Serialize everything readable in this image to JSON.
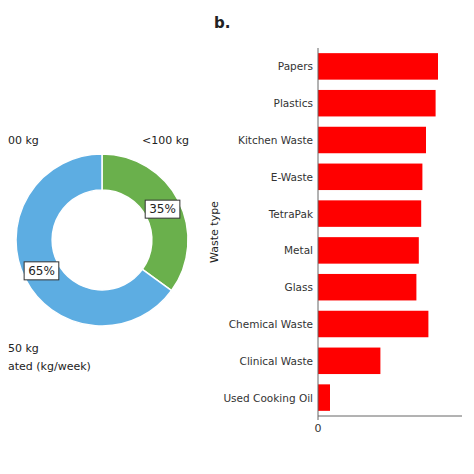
{
  "chart_data": [
    {
      "type": "pie",
      "values": [
        35,
        65
      ],
      "colors": [
        "#6ab04c",
        "#5dade2"
      ],
      "data_labels": true,
      "value_labels": [
        "35%",
        "65%"
      ],
      "annotations": [
        "<100 kg",
        "00 kg",
        "50 kg",
        "ated (kg/week)"
      ]
    },
    {
      "type": "bar",
      "orientation": "horizontal",
      "subtitle": "b.",
      "ylabel": "Waste type",
      "categories": [
        "Papers",
        "Plastics",
        "Kitchen Waste",
        "E-Waste",
        "TetraPak",
        "Metal",
        "Glass",
        "Chemical Waste",
        "Clinical Waste",
        "Used Cooking Oil"
      ],
      "values": [
        100,
        98,
        90,
        87,
        86,
        84,
        82,
        92,
        52,
        10
      ],
      "color": "#ff0000",
      "xlim": [
        0,
        120
      ],
      "xticks": [
        0
      ],
      "grid": false
    }
  ]
}
